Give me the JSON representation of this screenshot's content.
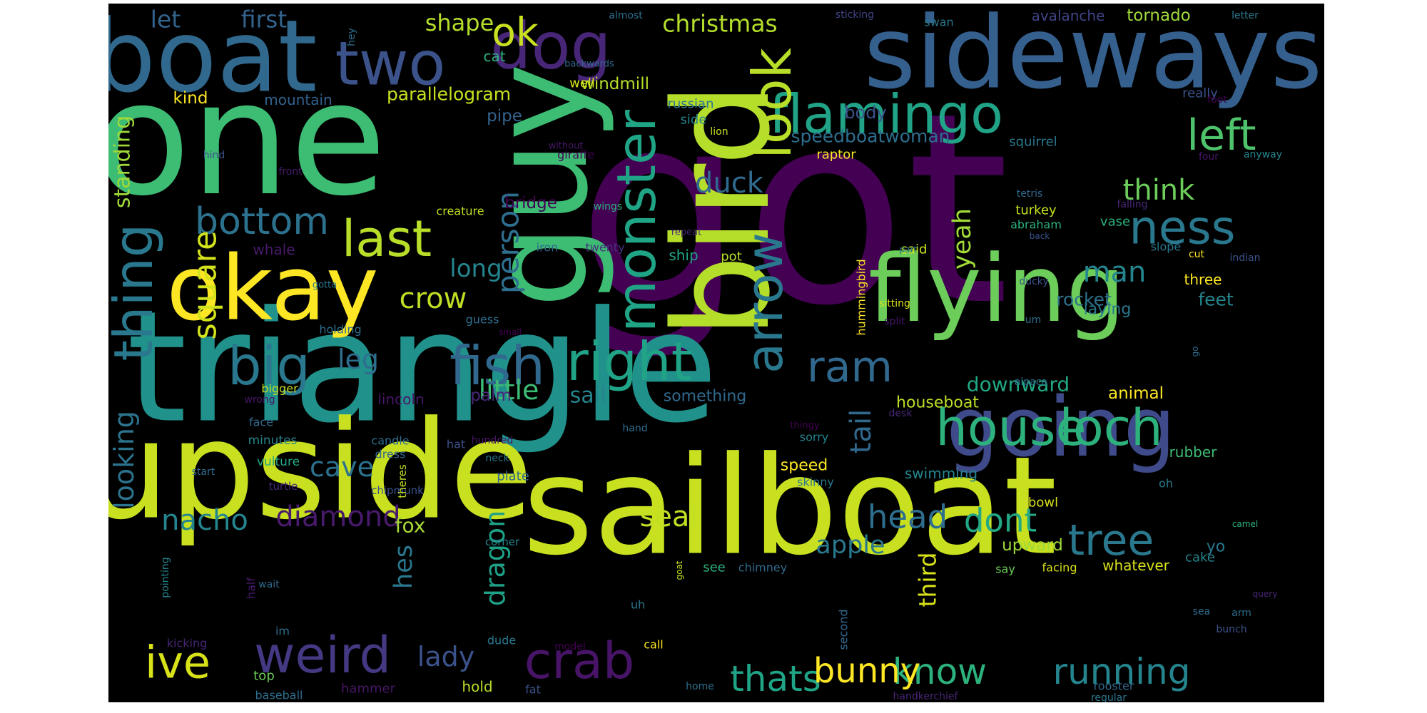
{
  "background": "#000000",
  "colormap": "viridis",
  "words": [
    {
      "text": "got",
      "color": "#440154"
    },
    {
      "text": "triangle",
      "color": "#21918c"
    },
    {
      "text": "upside",
      "color": "#c8e020"
    },
    {
      "text": "sailboat",
      "color": "#c8e020"
    },
    {
      "text": "one",
      "color": "#3dbc74"
    },
    {
      "text": "guy",
      "color": "#3dbc74"
    },
    {
      "text": "bird",
      "color": "#b5de2b"
    },
    {
      "text": "boat",
      "color": "#31688e"
    },
    {
      "text": "sideways",
      "color": "#355f8d"
    },
    {
      "text": "flying",
      "color": "#6ccd5a"
    },
    {
      "text": "going",
      "color": "#3e4a89"
    },
    {
      "text": "okay",
      "color": "#fde725"
    },
    {
      "text": "dog",
      "color": "#482677"
    },
    {
      "text": "two",
      "color": "#3b528b"
    },
    {
      "text": "flamingo",
      "color": "#20a386"
    },
    {
      "text": "monster",
      "color": "#20a486"
    },
    {
      "text": "look",
      "color": "#b8de29"
    },
    {
      "text": "thing",
      "color": "#2a788e"
    },
    {
      "text": "house",
      "color": "#2db27d"
    },
    {
      "text": "loch",
      "color": "#2db27d"
    },
    {
      "text": "last",
      "color": "#b8de29"
    },
    {
      "text": "big",
      "color": "#2a788e"
    },
    {
      "text": "fish",
      "color": "#31688e"
    },
    {
      "text": "right",
      "color": "#20a386"
    },
    {
      "text": "weird",
      "color": "#443983"
    },
    {
      "text": "arrow",
      "color": "#2a788e"
    },
    {
      "text": "ness",
      "color": "#2a788e"
    },
    {
      "text": "left",
      "color": "#4ec36b"
    },
    {
      "text": "crab",
      "color": "#481467"
    },
    {
      "text": "tree",
      "color": "#2a788e"
    },
    {
      "text": "ive",
      "color": "#d8e219"
    },
    {
      "text": "bottom",
      "color": "#2c728e"
    },
    {
      "text": "ram",
      "color": "#31688e"
    },
    {
      "text": "thats",
      "color": "#20a486"
    },
    {
      "text": "know",
      "color": "#2db27d"
    },
    {
      "text": "running",
      "color": "#25858e"
    },
    {
      "text": "ok",
      "color": "#c8e020"
    },
    {
      "text": "bunny",
      "color": "#fde725"
    },
    {
      "text": "square",
      "color": "#d2e21b"
    },
    {
      "text": "person",
      "color": "#2e6e8e"
    },
    {
      "text": "diamond",
      "color": "#481a6c"
    },
    {
      "text": "nacho",
      "color": "#25858e"
    },
    {
      "text": "head",
      "color": "#2e6e8e"
    },
    {
      "text": "dont",
      "color": "#22a884"
    },
    {
      "text": "crow",
      "color": "#bddf26"
    },
    {
      "text": "lady",
      "color": "#3b528b"
    },
    {
      "text": "think",
      "color": "#6ccd5a"
    },
    {
      "text": "man",
      "color": "#25858e"
    },
    {
      "text": "duck",
      "color": "#306a8e"
    },
    {
      "text": "cave",
      "color": "#2c728e"
    },
    {
      "text": "looking",
      "color": "#2c738e"
    },
    {
      "text": "dragon",
      "color": "#1fa187"
    },
    {
      "text": "tail",
      "color": "#31688e"
    },
    {
      "text": "yeah",
      "color": "#a0da39"
    },
    {
      "text": "seal",
      "color": "#c2df23"
    },
    {
      "text": "apple",
      "color": "#2a788e"
    },
    {
      "text": "little",
      "color": "#3dbc74"
    },
    {
      "text": "leg",
      "color": "#2e6e8e"
    },
    {
      "text": "long",
      "color": "#25858e"
    },
    {
      "text": "hes",
      "color": "#2a788e"
    },
    {
      "text": "third",
      "color": "#d8e219"
    },
    {
      "text": "christmas",
      "color": "#b5de2b"
    },
    {
      "text": "let",
      "color": "#33638d"
    },
    {
      "text": "first",
      "color": "#33638d"
    },
    {
      "text": "shape",
      "color": "#b5de2b"
    },
    {
      "text": "standing",
      "color": "#a0da39"
    },
    {
      "text": "sail",
      "color": "#25858e"
    },
    {
      "text": "downward",
      "color": "#22a884"
    },
    {
      "text": "fox",
      "color": "#a8db34"
    },
    {
      "text": "parallelogram",
      "color": "#c8e020"
    },
    {
      "text": "speedboatwoman",
      "color": "#2e6e8e"
    },
    {
      "text": "rocket",
      "color": "#2c728e"
    },
    {
      "text": "feet",
      "color": "#25858e"
    },
    {
      "text": "body",
      "color": "#3b528b"
    },
    {
      "text": "windmill",
      "color": "#b5de2b"
    },
    {
      "text": "tornado",
      "color": "#a0da39"
    },
    {
      "text": "avalanche",
      "color": "#414487"
    },
    {
      "text": "animal",
      "color": "#fde725"
    },
    {
      "text": "kind",
      "color": "#fde725"
    },
    {
      "text": "upward",
      "color": "#a0da39"
    },
    {
      "text": "rubber",
      "color": "#3dbc74"
    },
    {
      "text": "swimming",
      "color": "#25858e"
    },
    {
      "text": "pipe",
      "color": "#33638d"
    },
    {
      "text": "bridge",
      "color": "#440154"
    },
    {
      "text": "palm",
      "color": "#482677"
    },
    {
      "text": "laying",
      "color": "#2a788e"
    },
    {
      "text": "houseboat",
      "color": "#bddf26"
    },
    {
      "text": "something",
      "color": "#306a8e"
    },
    {
      "text": "speed",
      "color": "#fde725"
    },
    {
      "text": "mountain",
      "color": "#33638d"
    },
    {
      "text": "lincoln",
      "color": "#481668"
    },
    {
      "text": "whale",
      "color": "#481a6c"
    },
    {
      "text": "ship",
      "color": "#20a486"
    },
    {
      "text": "hold",
      "color": "#b8de29"
    },
    {
      "text": "yo",
      "color": "#2a788e"
    },
    {
      "text": "three",
      "color": "#fde725"
    },
    {
      "text": "whatever",
      "color": "#d8e219"
    },
    {
      "text": "cat",
      "color": "#2db27d"
    },
    {
      "text": "squirrel",
      "color": "#2a788e"
    },
    {
      "text": "russian",
      "color": "#2a788e"
    },
    {
      "text": "really",
      "color": "#3b528b"
    },
    {
      "text": "side",
      "color": "#25858e"
    },
    {
      "text": "vase",
      "color": "#2db27d"
    },
    {
      "text": "turkey",
      "color": "#c8e020"
    },
    {
      "text": "well",
      "color": "#d8e219"
    },
    {
      "text": "cake",
      "color": "#25858e"
    },
    {
      "text": "said",
      "color": "#c8e020"
    },
    {
      "text": "abraham",
      "color": "#2db27d"
    },
    {
      "text": "raptor",
      "color": "#fde725"
    },
    {
      "text": "giraffe",
      "color": "#440154"
    },
    {
      "text": "creature",
      "color": "#c2df23"
    },
    {
      "text": "twenty",
      "color": "#46327e"
    },
    {
      "text": "iron",
      "color": "#31688e"
    },
    {
      "text": "pot",
      "color": "#b8de29"
    },
    {
      "text": "hummingbird",
      "color": "#fde725"
    },
    {
      "text": "slope",
      "color": "#2a788e"
    },
    {
      "text": "minutes",
      "color": "#25858e"
    },
    {
      "text": "vulture",
      "color": "#22a884"
    },
    {
      "text": "candle",
      "color": "#2e6e8e"
    },
    {
      "text": "dress",
      "color": "#31688e"
    },
    {
      "text": "sorry",
      "color": "#25858e"
    },
    {
      "text": "skinny",
      "color": "#2a788e"
    },
    {
      "text": "bowl",
      "color": "#d8e219"
    },
    {
      "text": "plate",
      "color": "#306a8e"
    },
    {
      "text": "chipmunk",
      "color": "#3b528b"
    },
    {
      "text": "turtle",
      "color": "#482677"
    },
    {
      "text": "bigger",
      "color": "#c2df23"
    },
    {
      "text": "face",
      "color": "#306a8e"
    },
    {
      "text": "wrong",
      "color": "#481668"
    },
    {
      "text": "start",
      "color": "#306a8e"
    },
    {
      "text": "hat",
      "color": "#3b528b"
    },
    {
      "text": "neck",
      "color": "#2a788e"
    },
    {
      "text": "hundred",
      "color": "#481668"
    },
    {
      "text": "theres",
      "color": "#c2df23"
    },
    {
      "text": "corner",
      "color": "#25858e"
    },
    {
      "text": "see",
      "color": "#2db27d"
    },
    {
      "text": "chimney",
      "color": "#306a8e"
    },
    {
      "text": "facing",
      "color": "#d8e219"
    },
    {
      "text": "say",
      "color": "#6ccd5a"
    },
    {
      "text": "oh",
      "color": "#2a788e"
    },
    {
      "text": "uh",
      "color": "#2a788e"
    },
    {
      "text": "call",
      "color": "#fde725"
    },
    {
      "text": "model",
      "color": "#440154"
    },
    {
      "text": "dude",
      "color": "#2a788e"
    },
    {
      "text": "top",
      "color": "#6ccd5a"
    },
    {
      "text": "hammer",
      "color": "#481668"
    },
    {
      "text": "baseball",
      "color": "#2e6e8e"
    },
    {
      "text": "fat",
      "color": "#3b528b"
    },
    {
      "text": "home",
      "color": "#2e6e8e"
    },
    {
      "text": "rooster",
      "color": "#31688e"
    },
    {
      "text": "regular",
      "color": "#2a788e"
    },
    {
      "text": "handkerchief",
      "color": "#482677"
    },
    {
      "text": "kicking",
      "color": "#482677"
    },
    {
      "text": "im",
      "color": "#2e6e8e"
    },
    {
      "text": "half",
      "color": "#481a6c"
    },
    {
      "text": "pointing",
      "color": "#25858e"
    },
    {
      "text": "wait",
      "color": "#31688e"
    },
    {
      "text": "goat",
      "color": "#c8e020"
    },
    {
      "text": "second",
      "color": "#31688e"
    },
    {
      "text": "desk",
      "color": "#482677"
    },
    {
      "text": "hand",
      "color": "#2e6e8e"
    },
    {
      "text": "guess",
      "color": "#2e6e8e"
    },
    {
      "text": "small",
      "color": "#440154"
    },
    {
      "text": "holding",
      "color": "#2e6e8e"
    },
    {
      "text": "gotta",
      "color": "#2a788e"
    },
    {
      "text": "almost",
      "color": "#2e6e8e"
    },
    {
      "text": "sticking",
      "color": "#414487"
    },
    {
      "text": "swan",
      "color": "#2a788e"
    },
    {
      "text": "letter",
      "color": "#2a788e"
    },
    {
      "text": "hey",
      "color": "#2e6e8e"
    },
    {
      "text": "backwards",
      "color": "#31688e"
    },
    {
      "text": "foot",
      "color": "#440154"
    },
    {
      "text": "anyway",
      "color": "#25858e"
    },
    {
      "text": "four",
      "color": "#481668"
    },
    {
      "text": "lion",
      "color": "#c8e020"
    },
    {
      "text": "llama",
      "color": "#440154"
    },
    {
      "text": "without",
      "color": "#481668"
    },
    {
      "text": "front",
      "color": "#481a6c"
    },
    {
      "text": "hind",
      "color": "#3b528b"
    },
    {
      "text": "wings",
      "color": "#2db27d"
    },
    {
      "text": "repeat",
      "color": "#482677"
    },
    {
      "text": "tetris",
      "color": "#31688e"
    },
    {
      "text": "falling",
      "color": "#482677"
    },
    {
      "text": "back",
      "color": "#3b528b"
    },
    {
      "text": "part",
      "color": "#2a788e"
    },
    {
      "text": "cut",
      "color": "#fde725"
    },
    {
      "text": "indian",
      "color": "#3b528b"
    },
    {
      "text": "ducky",
      "color": "#3b528b"
    },
    {
      "text": "sitting",
      "color": "#d8e219"
    },
    {
      "text": "split",
      "color": "#481668"
    },
    {
      "text": "alpaca",
      "color": "#2e6e8e"
    },
    {
      "text": "thingy",
      "color": "#440154"
    },
    {
      "text": "um",
      "color": "#2e6e8e"
    },
    {
      "text": "go",
      "color": "#2e6e8e"
    },
    {
      "text": "camel",
      "color": "#2db27d"
    },
    {
      "text": "query",
      "color": "#482677"
    },
    {
      "text": "sea",
      "color": "#2e6e8e"
    },
    {
      "text": "arm",
      "color": "#2e6e8e"
    },
    {
      "text": "bunch",
      "color": "#3b528b"
    }
  ]
}
